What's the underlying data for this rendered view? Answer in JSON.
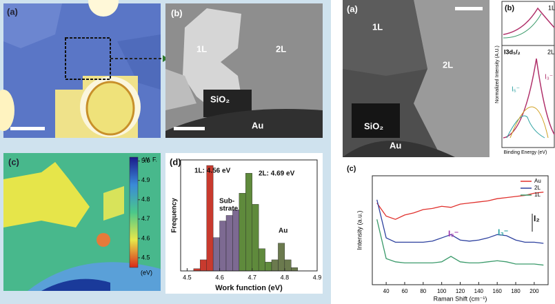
{
  "figure_left": {
    "panel_a": {
      "label": "(a)"
    },
    "panel_b": {
      "label": "(b)",
      "regions": [
        "1L",
        "2L",
        "SiO₂",
        "Au"
      ]
    },
    "panel_c": {
      "label": "(c)",
      "colorbar": {
        "title": "W. F.",
        "unit": "(eV)",
        "lim": [
          4.45,
          5.02
        ],
        "ticks": [
          {
            "value": 5,
            "label": "5.0"
          },
          4.9,
          4.8,
          4.7,
          4.6,
          4.5
        ]
      }
    }
  },
  "figure_right": {
    "panel_a": {
      "label": "(a)",
      "regions": [
        "1L",
        "2L",
        "SiO₂",
        "Au"
      ]
    },
    "panel_b": {
      "label": "(b)",
      "texts": [
        "1L",
        "I3d₅/₂",
        "2L",
        "I₃⁻",
        "I₅⁻"
      ],
      "ylabel": "Normalized Intensity (A.U.)",
      "xlabel": "Binding Energy (eV)"
    }
  },
  "chart_data": [
    {
      "type": "histogram",
      "label": "(d)",
      "bins": [
        4.52,
        4.54,
        4.56,
        4.58,
        4.6,
        4.62,
        4.64,
        4.66,
        4.68,
        4.7,
        4.72,
        4.74,
        4.76,
        4.78,
        4.8,
        4.82,
        4.84
      ],
      "counts": [
        2,
        10,
        95,
        30,
        45,
        50,
        55,
        70,
        88,
        60,
        20,
        8,
        10,
        25,
        10,
        3
      ],
      "colors": [
        "#c83a2e",
        "#c83a2e",
        "#c83a2e",
        "#7d6a92",
        "#7d6a92",
        "#7d6a92",
        "#7d6a92",
        "#5f8a3c",
        "#5f8a3c",
        "#5f8a3c",
        "#5f8a3c",
        "#5f8a3c",
        "#6b7a4e",
        "#6b7a4e",
        "#6b7a4e",
        "#6b7a4e"
      ],
      "xlim": [
        4.48,
        4.9
      ],
      "xticks": [
        4.5,
        4.6,
        4.7,
        4.8,
        4.9
      ],
      "ylim": [
        0,
        100
      ],
      "xlabel": "Work function (eV)",
      "ylabel": "Frequency",
      "annotations": [
        "1L: 4.56 eV",
        "2L: 4.69 eV",
        "Sub-",
        "strate",
        "Au"
      ]
    },
    {
      "type": "line",
      "label": "(c)",
      "x": [
        30,
        40,
        50,
        60,
        70,
        80,
        90,
        100,
        110,
        120,
        130,
        140,
        150,
        160,
        170,
        180,
        190,
        200,
        210
      ],
      "series": [
        {
          "name": "Au",
          "color": "#e0302c",
          "values": [
            7.5,
            6.3,
            6.0,
            6.4,
            6.6,
            6.9,
            7.0,
            7.2,
            7.1,
            7.4,
            7.5,
            7.6,
            7.7,
            7.9,
            8.0,
            8.1,
            8.2,
            8.4,
            8.5
          ]
        },
        {
          "name": "2L",
          "color": "#2b3f9e",
          "values": [
            7.8,
            4.3,
            3.9,
            3.9,
            3.9,
            3.9,
            4.0,
            4.3,
            4.6,
            4.1,
            4.0,
            4.1,
            4.3,
            4.6,
            4.5,
            4.1,
            3.9,
            3.9,
            3.8
          ]
        },
        {
          "name": "1L",
          "color": "#3a9a6a",
          "values": [
            6.0,
            2.4,
            2.1,
            2.0,
            2.0,
            2.0,
            2.0,
            2.1,
            2.6,
            2.1,
            2.0,
            2.0,
            2.1,
            2.2,
            2.1,
            1.9,
            1.9,
            1.9,
            1.8
          ]
        }
      ],
      "xlim": [
        25,
        215
      ],
      "xticks": [
        40,
        60,
        80,
        100,
        120,
        140,
        160,
        180,
        200
      ],
      "ylim": [
        0,
        10
      ],
      "xlabel": "Raman Shift (cm⁻¹)",
      "ylabel": "Intensity (a.u.)",
      "legend": "upper right",
      "annotations": [
        "I₅⁻",
        "I₃⁻",
        "I₂"
      ]
    }
  ]
}
